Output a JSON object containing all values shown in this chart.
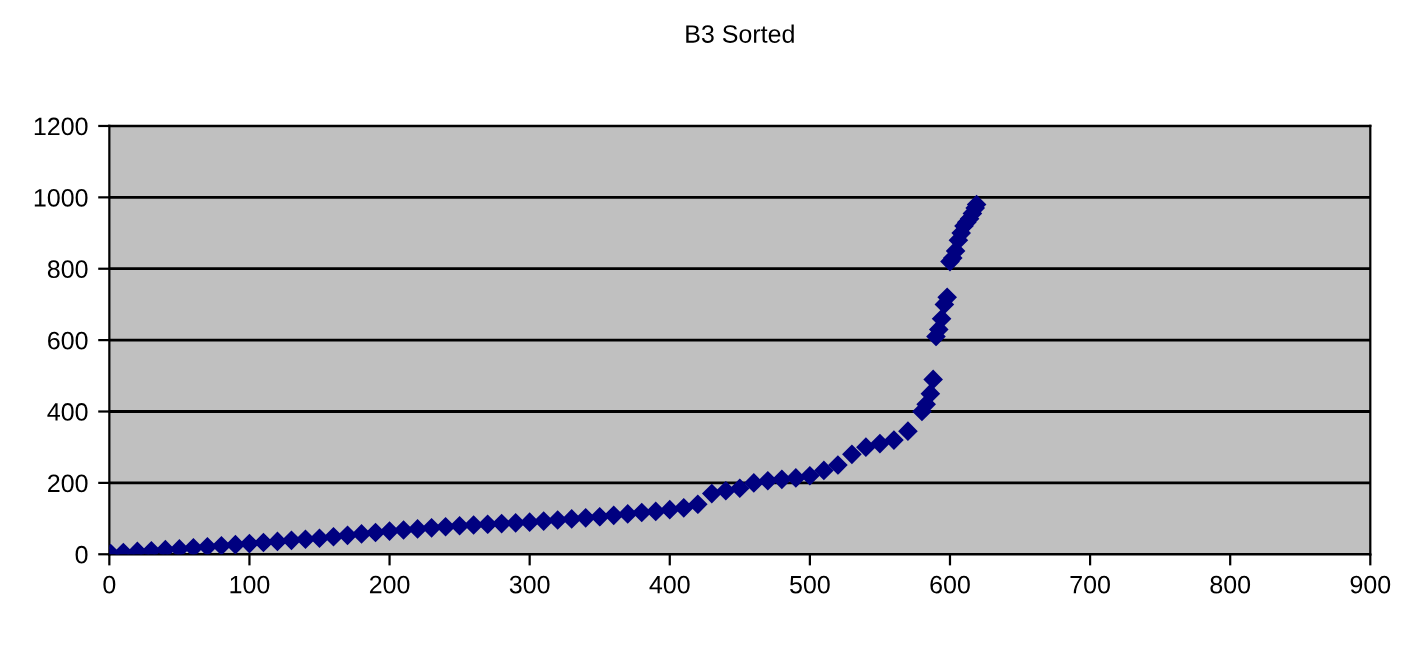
{
  "chart_data": {
    "type": "scatter",
    "title": "B3 Sorted",
    "x": [
      1,
      10,
      20,
      30,
      40,
      50,
      60,
      70,
      80,
      90,
      100,
      110,
      120,
      130,
      140,
      150,
      160,
      170,
      180,
      190,
      200,
      210,
      220,
      230,
      240,
      250,
      260,
      270,
      280,
      290,
      300,
      310,
      320,
      330,
      340,
      350,
      360,
      370,
      380,
      390,
      400,
      410,
      420,
      430,
      440,
      450,
      460,
      470,
      480,
      490,
      500,
      510,
      520,
      530,
      540,
      550,
      560,
      570,
      580,
      583,
      586,
      588,
      590,
      592,
      594,
      596,
      598,
      600,
      602,
      604,
      606,
      608,
      610,
      612,
      614,
      616,
      618,
      619
    ],
    "values": [
      2,
      5,
      8,
      10,
      13,
      15,
      18,
      21,
      24,
      27,
      30,
      33,
      36,
      39,
      42,
      45,
      49,
      53,
      57,
      61,
      65,
      68,
      71,
      74,
      77,
      80,
      82,
      84,
      86,
      88,
      90,
      93,
      96,
      99,
      102,
      105,
      109,
      113,
      117,
      120,
      125,
      130,
      140,
      170,
      178,
      185,
      200,
      206,
      210,
      214,
      220,
      235,
      250,
      280,
      300,
      310,
      320,
      345,
      400,
      420,
      450,
      490,
      610,
      630,
      660,
      700,
      720,
      820,
      830,
      850,
      880,
      900,
      920,
      930,
      940,
      955,
      970,
      980
    ],
    "color": "#000080",
    "marker": "diamond",
    "xlim": [
      0,
      900
    ],
    "xticks": [
      0,
      100,
      200,
      300,
      400,
      500,
      600,
      700,
      800,
      900
    ],
    "ylim": [
      0,
      1200
    ],
    "yticks": [
      0,
      200,
      400,
      600,
      800,
      1000,
      1200
    ],
    "grid": "y",
    "legend": false
  }
}
